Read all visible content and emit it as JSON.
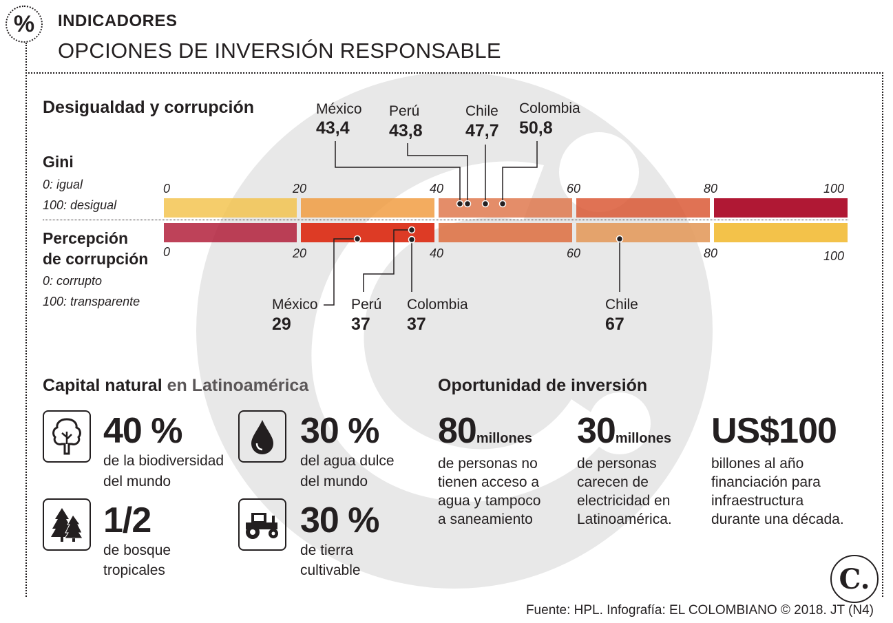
{
  "header": {
    "badge": "%",
    "kicker": "INDICADORES",
    "headline": "OPCIONES DE INVERSIÓN RESPONSABLE"
  },
  "inequality": {
    "title": "Desigualdad y corrupción",
    "gini": {
      "label": "Gini",
      "legend_low": "0: igual",
      "legend_high": "100: desigual",
      "ticks": [
        "0",
        "20",
        "40",
        "60",
        "80",
        "100"
      ],
      "colors": [
        "#f3c24a",
        "#f09a3c",
        "#de7448",
        "#d9532e",
        "#b01834"
      ],
      "countries": [
        {
          "name": "México",
          "value": "43,4"
        },
        {
          "name": "Perú",
          "value": "43,8"
        },
        {
          "name": "Chile",
          "value": "47,7"
        },
        {
          "name": "Colombia",
          "value": "50,8"
        }
      ]
    },
    "corruption": {
      "label_line1": "Percepción",
      "label_line2": "de corrupción",
      "legend_low": "0: corrupto",
      "legend_high": "100: transparente",
      "ticks": [
        "0",
        "20",
        "40",
        "60",
        "80",
        "100"
      ],
      "colors": [
        "#b01834",
        "#dd3b25",
        "#de7448",
        "#e39b5e",
        "#f3c24a"
      ],
      "countries": [
        {
          "name": "México",
          "value": "29"
        },
        {
          "name": "Perú",
          "value": "37"
        },
        {
          "name": "Colombia",
          "value": "37"
        },
        {
          "name": "Chile",
          "value": "67"
        }
      ]
    }
  },
  "natural_capital": {
    "title_bold": "Capital natural",
    "title_rest": " en Latinoamérica",
    "items": [
      {
        "icon": "tree-icon",
        "figure": "40 %",
        "line1": "de la biodiversidad",
        "line2": "del mundo"
      },
      {
        "icon": "water-drop-icon",
        "figure": "30 %",
        "line1": "del agua dulce",
        "line2": "del mundo"
      },
      {
        "icon": "pine-forest-icon",
        "figure": "1/2",
        "line1": "de bosque",
        "line2": "tropicales"
      },
      {
        "icon": "tractor-icon",
        "figure": "30 %",
        "line1": "de tierra",
        "line2": "cultivable"
      }
    ]
  },
  "opportunity": {
    "title": "Oportunidad de inversión",
    "items": [
      {
        "figure": "80",
        "unit": "millones",
        "lines": [
          "de personas no",
          "tienen acceso a",
          "agua y tampoco",
          "a saneamiento"
        ]
      },
      {
        "figure": "30",
        "unit": "millones",
        "lines": [
          "de personas",
          "carecen de",
          "electricidad en",
          "Latinoamérica."
        ]
      },
      {
        "figure": "US$100",
        "unit": "",
        "lines": [
          "billones al año",
          "financiación para",
          "infraestructura",
          "durante una década."
        ]
      }
    ]
  },
  "footer": {
    "source": "Fuente: HPL. Infografía: EL COLOMBIANO © 2018. JT (N4)",
    "logo": "C."
  }
}
